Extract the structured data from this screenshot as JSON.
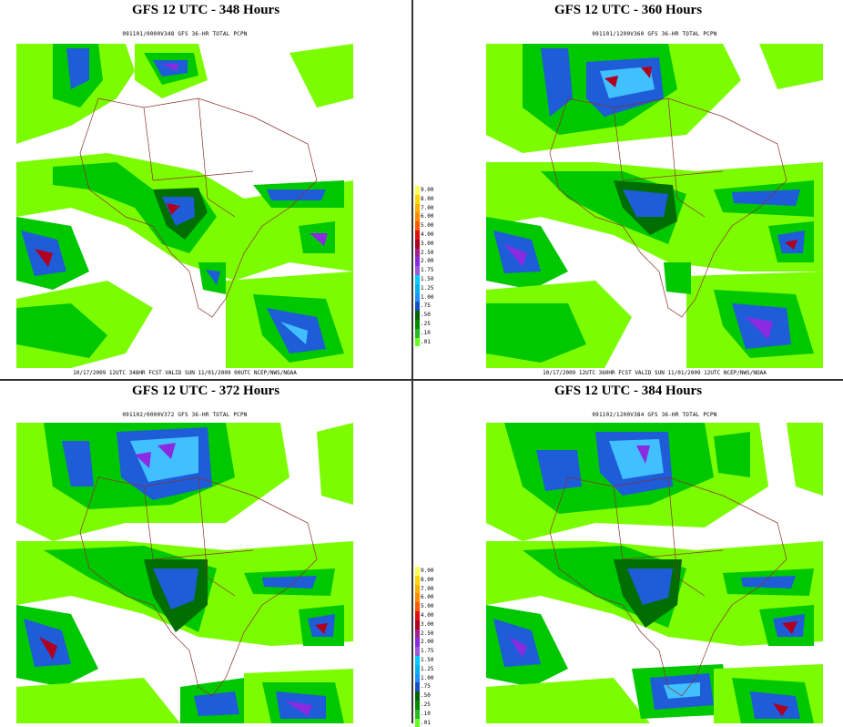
{
  "panels": [
    {
      "title": "GFS 12 UTC - 348 Hours",
      "subtitle": "091101/0000V348 GFS 36-HR TOTAL PCPN",
      "footer": "10/17/2009 12UTC 348HR FCST VALID SUN 11/01/2009 00UTC  NCEP/NWS/NOAA"
    },
    {
      "title": "GFS 12 UTC - 360 Hours",
      "subtitle": "091101/1200V360 GFS 36-HR TOTAL PCPN",
      "footer": "10/17/2009 12UTC 360HR FCST VALID SUN 11/01/2009 12UTC  NCEP/NWS/NOAA"
    },
    {
      "title": "GFS 12 UTC - 372 Hours",
      "subtitle": "091102/0000V372 GFS 36-HR TOTAL PCPN",
      "footer": ""
    },
    {
      "title": "GFS 12 UTC - 384 Hours",
      "subtitle": "091102/1200V384 GFS 36-HR TOTAL PCPN",
      "footer": ""
    }
  ],
  "legend": {
    "levels": [
      "9.00",
      "8.00",
      "7.00",
      "6.00",
      "5.00",
      "4.00",
      "3.00",
      "2.50",
      "2.00",
      "1.75",
      "1.50",
      "1.25",
      "1.00",
      ".75",
      ".50",
      ".25",
      ".10",
      ".01"
    ],
    "colors": [
      "#ffff55",
      "#ffd700",
      "#ffb000",
      "#ff8c00",
      "#ff5a00",
      "#e01010",
      "#b00020",
      "#a02090",
      "#8a2be2",
      "#9b59d6",
      "#00ccff",
      "#00b4f0",
      "#1e90ff",
      "#1850c8",
      "#006400",
      "#008a00",
      "#22bb22",
      "#66ff22"
    ]
  },
  "colors": {
    "light_green": "#7cfc00",
    "mid_green": "#00c800",
    "dark_green": "#006e00",
    "blue": "#1e5cd8",
    "light_blue": "#40c0ff",
    "purple": "#8a2be2",
    "red": "#d01030",
    "border": "#8b3030"
  }
}
